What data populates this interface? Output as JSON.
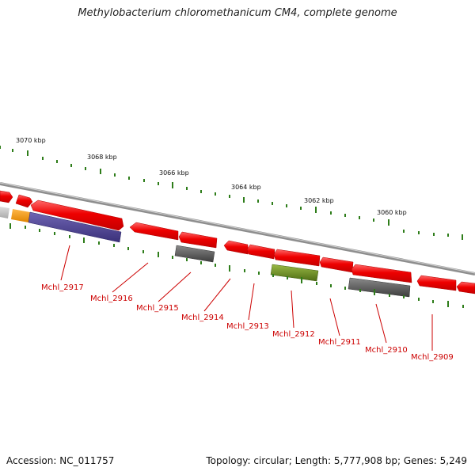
{
  "title": "Methylobacterium chloromethanicum CM4, complete genome",
  "footer": {
    "accession": "Accession: NC_011757",
    "summary": "Topology: circular; Length: 5,777,908 bp; Genes: 5,249"
  },
  "kbp_labels": [
    "3070 kbp",
    "3068 kbp",
    "3066 kbp",
    "3064 kbp",
    "3062 kbp",
    "3060 kbp"
  ],
  "gene_labels": [
    "Mchl_2917",
    "Mchl_2916",
    "Mchl_2915",
    "Mchl_2914",
    "Mchl_2913",
    "Mchl_2912",
    "Mchl_2911",
    "Mchl_2910",
    "Mchl_2909"
  ],
  "colors": {
    "forward_gene": "#ee1111",
    "reverse_purple": "#4a3f8f",
    "reverse_gray": "#5a5a5a",
    "reverse_green": "#6b8e23",
    "orange": "#f39c12",
    "tick": "#2e7d1a",
    "label": "#cc0000"
  }
}
